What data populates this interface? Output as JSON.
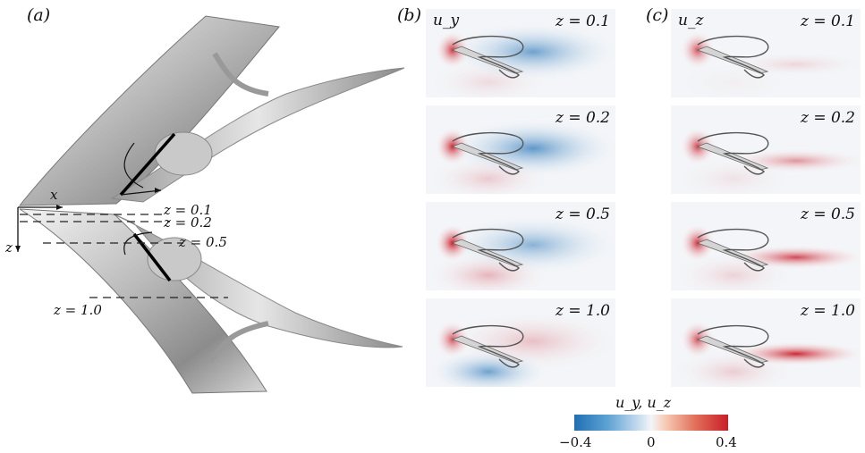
{
  "panels": {
    "a": {
      "label": "(a)"
    },
    "b": {
      "label": "(b)",
      "variable": "u_y"
    },
    "c": {
      "label": "(c)",
      "variable": "u_z"
    }
  },
  "wing": {
    "axis_x": "x",
    "axis_z": "z",
    "slices": [
      "z = 0.1",
      "z = 0.2",
      "z = 0.5",
      "z = 1.0"
    ]
  },
  "grid_z_labels": [
    "z = 0.1",
    "z = 0.2",
    "z = 0.5",
    "z = 1.0"
  ],
  "colorbar": {
    "title": "u_y, u_z",
    "min_label": "−0.4",
    "mid_label": "0",
    "max_label": "0.4",
    "min": -0.4,
    "max": 0.4,
    "colors": {
      "negative": "#1f6fb4",
      "zero": "#f3f5f8",
      "positive": "#c81e2a"
    }
  },
  "fields": {
    "u_y": [
      {
        "z": 0.1,
        "front_peak": 0.35,
        "wake": -0.25,
        "lower": 0.05
      },
      {
        "z": 0.2,
        "front_peak": 0.38,
        "wake": -0.28,
        "lower": 0.08
      },
      {
        "z": 0.5,
        "front_peak": 0.4,
        "wake": -0.2,
        "lower": 0.12
      },
      {
        "z": 1.0,
        "front_peak": 0.3,
        "wake": 0.1,
        "lower": -0.25
      }
    ],
    "u_z": [
      {
        "z": 0.1,
        "front_peak": 0.3,
        "wake": 0.06
      },
      {
        "z": 0.2,
        "front_peak": 0.33,
        "wake": 0.18
      },
      {
        "z": 0.5,
        "front_peak": 0.36,
        "wake": 0.32
      },
      {
        "z": 1.0,
        "front_peak": 0.3,
        "wake": 0.38
      }
    ]
  }
}
